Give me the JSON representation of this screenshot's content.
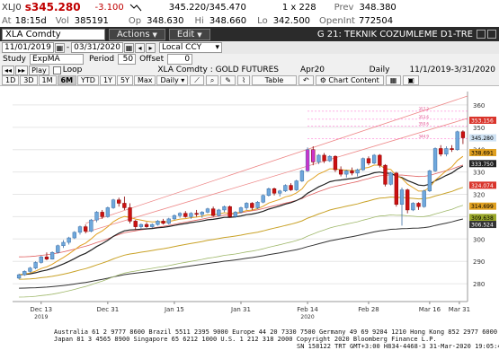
{
  "quote": {
    "ticker": "XLJ0",
    "last_prefix": "s",
    "last": "345.280",
    "change": "-3.100",
    "bid_ask": "345.220/345.470",
    "size": "1 x 228",
    "prev_label": "Prev",
    "prev": "348.380"
  },
  "times": {
    "at_label": "At",
    "at": "18:15d",
    "vol_label": "Vol",
    "vol": "385191",
    "op_label": "Op",
    "op": "348.630",
    "hi_label": "Hi",
    "hi": "348.660",
    "lo_label": "Lo",
    "lo": "342.500",
    "oi_label": "OpenInt",
    "oi": "772504"
  },
  "command": {
    "security": "XLA Comdty",
    "actions": "Actions",
    "edit": "Edit",
    "title": "G 21: TEKNIK COZUMLEME D1-TRE"
  },
  "range": {
    "start": "11/01/2019",
    "dash": "-",
    "end": "03/31/2020",
    "currency": "Local CCY"
  },
  "study": {
    "study_label": "Study",
    "study_value": "ExpMA",
    "period_label": "Period",
    "period_value": "50",
    "offset_label": "Offset",
    "offset_value": "0"
  },
  "playbar": {
    "play": "Play",
    "loop": "Loop",
    "chart_title": "XLA Comdty : GOLD FUTURES",
    "contract": "Apr20",
    "frequency": "Daily",
    "date_range": "11/1/2019-3/31/2020"
  },
  "periods": {
    "tabs": [
      "1D",
      "3D",
      "1M",
      "6M",
      "YTD",
      "1Y",
      "5Y",
      "Max"
    ],
    "active": "6M",
    "freq": "Daily",
    "table": "Table",
    "chart_content": "Chart Content"
  },
  "chart_data": {
    "type": "candlestick",
    "y_ticks": [
      280,
      290,
      300,
      310,
      320,
      330,
      340,
      350,
      360
    ],
    "ylim": [
      272,
      366
    ],
    "x_labels": [
      {
        "label": "Dec 13",
        "sub": "2019"
      },
      {
        "label": "Dec 31",
        "sub": ""
      },
      {
        "label": "Jan 15",
        "sub": ""
      },
      {
        "label": "Jan 31",
        "sub": ""
      },
      {
        "label": "Feb 14",
        "sub": "2020"
      },
      {
        "label": "Feb 28",
        "sub": ""
      },
      {
        "label": "Mar 16",
        "sub": ""
      },
      {
        "label": "Mar 31",
        "sub": ""
      }
    ],
    "candles": [
      [
        282.5,
        284.5,
        282.0,
        284.0
      ],
      [
        284.0,
        286.0,
        283.5,
        285.5
      ],
      [
        285.5,
        287.5,
        285.0,
        287.0
      ],
      [
        287.0,
        290.0,
        286.5,
        289.5
      ],
      [
        289.5,
        292.5,
        289.0,
        292.0
      ],
      [
        292.0,
        294.0,
        290.5,
        291.0
      ],
      [
        291.0,
        294.5,
        290.8,
        294.0
      ],
      [
        294.0,
        297.5,
        293.5,
        297.0
      ],
      [
        297.0,
        299.5,
        296.0,
        298.5
      ],
      [
        298.5,
        301.0,
        297.5,
        300.5
      ],
      [
        300.5,
        303.5,
        300.0,
        303.0
      ],
      [
        303.0,
        306.0,
        302.0,
        305.5
      ],
      [
        305.5,
        306.5,
        302.5,
        303.5
      ],
      [
        303.5,
        309.0,
        303.0,
        308.5
      ],
      [
        308.5,
        312.5,
        307.5,
        312.0
      ],
      [
        312.0,
        313.0,
        309.0,
        310.0
      ],
      [
        310.0,
        314.5,
        309.5,
        314.0
      ],
      [
        314.0,
        318.0,
        313.5,
        317.5
      ],
      [
        317.5,
        318.5,
        314.5,
        316.0
      ],
      [
        316.0,
        319.0,
        313.0,
        314.0
      ],
      [
        314.0,
        316.0,
        307.0,
        308.0
      ],
      [
        308.0,
        308.5,
        304.0,
        305.5
      ],
      [
        305.5,
        307.0,
        304.5,
        306.5
      ],
      [
        306.5,
        307.5,
        305.0,
        305.5
      ],
      [
        305.5,
        307.0,
        305.0,
        306.5
      ],
      [
        306.5,
        308.5,
        306.0,
        308.0
      ],
      [
        308.0,
        309.0,
        306.5,
        307.0
      ],
      [
        307.0,
        309.5,
        306.5,
        309.0
      ],
      [
        309.0,
        311.0,
        308.5,
        310.5
      ],
      [
        310.5,
        312.0,
        309.5,
        311.5
      ],
      [
        311.5,
        312.5,
        309.5,
        310.0
      ],
      [
        310.0,
        312.0,
        309.0,
        311.5
      ],
      [
        311.5,
        313.0,
        310.0,
        311.0
      ],
      [
        311.0,
        312.5,
        309.5,
        312.0
      ],
      [
        312.0,
        314.0,
        311.5,
        313.5
      ],
      [
        313.5,
        314.5,
        310.0,
        310.5
      ],
      [
        310.5,
        313.5,
        310.0,
        313.0
      ],
      [
        313.0,
        315.0,
        312.0,
        314.5
      ],
      [
        314.5,
        315.0,
        309.5,
        310.0
      ],
      [
        310.0,
        312.5,
        309.5,
        312.0
      ],
      [
        312.0,
        314.5,
        311.5,
        314.0
      ],
      [
        314.0,
        316.5,
        313.0,
        316.0
      ],
      [
        316.0,
        316.5,
        313.0,
        314.0
      ],
      [
        314.0,
        317.0,
        313.5,
        316.5
      ],
      [
        316.5,
        320.0,
        316.0,
        319.5
      ],
      [
        319.5,
        323.0,
        319.0,
        322.5
      ],
      [
        322.5,
        323.0,
        319.5,
        320.5
      ],
      [
        320.5,
        322.0,
        319.0,
        321.5
      ],
      [
        321.5,
        324.5,
        321.0,
        324.0
      ],
      [
        324.0,
        325.0,
        321.5,
        322.0
      ],
      [
        322.0,
        326.5,
        321.5,
        326.0
      ],
      [
        326.0,
        331.0,
        325.5,
        330.5
      ],
      [
        330.5,
        341.0,
        330.0,
        340.0
      ],
      [
        340.0,
        341.5,
        333.0,
        334.5
      ],
      [
        334.5,
        338.0,
        333.5,
        337.5
      ],
      [
        337.5,
        338.5,
        334.0,
        335.0
      ],
      [
        335.0,
        337.5,
        334.5,
        337.0
      ],
      [
        337.0,
        337.5,
        330.0,
        331.0
      ],
      [
        331.0,
        332.5,
        328.0,
        329.0
      ],
      [
        329.0,
        331.0,
        327.5,
        330.5
      ],
      [
        330.5,
        332.0,
        328.5,
        329.5
      ],
      [
        329.5,
        331.5,
        328.0,
        331.0
      ],
      [
        331.0,
        336.5,
        330.5,
        336.0
      ],
      [
        336.0,
        337.0,
        333.0,
        334.0
      ],
      [
        334.0,
        338.0,
        333.5,
        337.5
      ],
      [
        337.5,
        338.0,
        332.0,
        333.0
      ],
      [
        333.0,
        333.5,
        323.5,
        324.5
      ],
      [
        324.5,
        330.0,
        324.0,
        329.5
      ],
      [
        329.5,
        330.0,
        314.5,
        315.5
      ],
      [
        315.5,
        323.0,
        306.0,
        322.0
      ],
      [
        322.0,
        322.5,
        311.5,
        313.0
      ],
      [
        313.0,
        316.5,
        312.5,
        316.0
      ],
      [
        316.0,
        316.5,
        313.0,
        314.5
      ],
      [
        314.5,
        322.0,
        314.0,
        321.5
      ],
      [
        321.5,
        331.0,
        321.0,
        330.5
      ],
      [
        330.5,
        341.0,
        330.0,
        340.5
      ],
      [
        340.5,
        342.0,
        337.0,
        338.0
      ],
      [
        338.0,
        341.5,
        337.0,
        340.5
      ],
      [
        340.5,
        342.0,
        339.0,
        340.0
      ],
      [
        340.0,
        348.5,
        339.5,
        348.0
      ],
      [
        348.0,
        348.7,
        342.5,
        345.3
      ]
    ],
    "price_labels": [
      {
        "value": "353.156",
        "color": "#d9342b"
      },
      {
        "value": "345.280",
        "color": "#cfe2f3"
      },
      {
        "value": "338.691",
        "color": "#e0a020"
      },
      {
        "value": "333.750",
        "color": "#222222"
      },
      {
        "value": "324.074",
        "color": "#d9342b"
      },
      {
        "value": "314.699",
        "color": "#e0a020"
      },
      {
        "value": "309.638",
        "color": "#9aa82a"
      },
      {
        "value": "306.524",
        "color": "#333333"
      }
    ],
    "fib_labels": [
      "344.9",
      "350.6",
      "353.6",
      "357.2"
    ]
  },
  "footer": {
    "line1": "Australia 61 2 9777 8600 Brazil 5511 2395 9000 Europe 44 20 7330 7500 Germany 49 69 9204 1210 Hong Kong 852 2977 6000",
    "line2": "Japan 81 3 4565 8900      Singapore 65 6212 1000      U.S. 1 212 318 2000      Copyright 2020 Bloomberg Finance L.P.",
    "line3": "SN 158122 TRT  GMT+3:00 H834-4468-3 31-Mar-2020 19:05:49"
  },
  "colors": {
    "up": "#6fa8dc",
    "down": "#cc1111",
    "highlight": "#cc33cc",
    "cyan": "#22dddd"
  }
}
